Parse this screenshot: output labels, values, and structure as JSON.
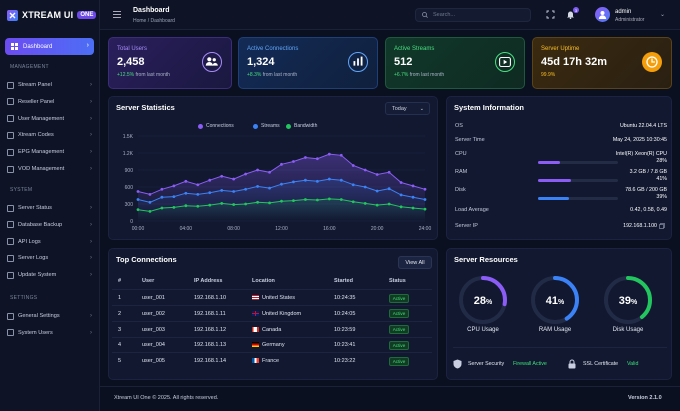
{
  "brand": {
    "name": "XTREAM UI",
    "badge": "ONE"
  },
  "header": {
    "title": "Dashboard",
    "breadcrumb": "Home / Dashboard",
    "search_placeholder": "Search...",
    "notification_count": "3",
    "user_name": "admin",
    "user_role": "Administrator"
  },
  "sidebar": {
    "active_item": "Dashboard",
    "sections": [
      {
        "label": "MANAGEMENT",
        "items": [
          "Stream Panel",
          "Reseller Panel",
          "User Management",
          "Xtream Codes",
          "EPG Management",
          "VOD Management"
        ]
      },
      {
        "label": "SYSTEM",
        "items": [
          "Server Status",
          "Database Backup",
          "API Logs",
          "Server Logs",
          "Update System"
        ]
      },
      {
        "label": "SETTINGS",
        "items": [
          "General Settings",
          "System Users"
        ]
      }
    ]
  },
  "stats": [
    {
      "title": "Total Users",
      "value": "2,458",
      "delta": "+12.5%",
      "note": "from last month",
      "color": "#a78bfa",
      "icon": "users-icon"
    },
    {
      "title": "Active Connections",
      "value": "1,324",
      "delta": "+8.3%",
      "note": "from last month",
      "color": "#60a5fa",
      "icon": "bar-chart-icon"
    },
    {
      "title": "Active Streams",
      "value": "512",
      "delta": "+6.7%",
      "note": "from last month",
      "color": "#4ade80",
      "icon": "play-icon"
    },
    {
      "title": "Server Uptime",
      "value": "45d 17h 32m",
      "delta": "",
      "note": "99.9%",
      "color": "#fbbf24",
      "icon": "clock-icon"
    }
  ],
  "server_stats": {
    "title": "Server Statistics",
    "range": "Today",
    "chart_data": {
      "type": "line",
      "title": "Server Statistics",
      "x": [
        "00:00",
        "01:00",
        "02:00",
        "03:00",
        "04:00",
        "05:00",
        "06:00",
        "07:00",
        "08:00",
        "09:00",
        "10:00",
        "11:00",
        "12:00",
        "13:00",
        "14:00",
        "15:00",
        "16:00",
        "17:00",
        "18:00",
        "19:00",
        "20:00",
        "21:00",
        "22:00",
        "23:00",
        "24:00"
      ],
      "xticks": [
        "00:00",
        "04:00",
        "08:00",
        "12:00",
        "16:00",
        "20:00",
        "24:00"
      ],
      "yticks": [
        "0",
        "300",
        "600",
        "900",
        "1.2K",
        "1.5K"
      ],
      "ylim": [
        0,
        1500
      ],
      "grid": true,
      "legend": "top",
      "series": [
        {
          "name": "Connections",
          "color": "#8b5cf6",
          "values": [
            520,
            470,
            560,
            620,
            700,
            640,
            720,
            790,
            740,
            830,
            900,
            860,
            1000,
            1050,
            1120,
            1100,
            1180,
            1160,
            980,
            900,
            820,
            860,
            680,
            620,
            560
          ]
        },
        {
          "name": "Streams",
          "color": "#3b82f6",
          "values": [
            380,
            330,
            420,
            430,
            490,
            470,
            500,
            540,
            520,
            560,
            610,
            580,
            650,
            690,
            720,
            700,
            740,
            720,
            640,
            600,
            530,
            570,
            460,
            420,
            380
          ]
        },
        {
          "name": "Bandwidth",
          "color": "#22c55e",
          "values": [
            200,
            170,
            230,
            240,
            270,
            260,
            280,
            310,
            290,
            300,
            330,
            320,
            350,
            360,
            380,
            370,
            390,
            380,
            340,
            310,
            280,
            300,
            250,
            230,
            210
          ]
        }
      ]
    }
  },
  "system_info": {
    "title": "System Information",
    "rows": [
      {
        "label": "OS",
        "value": "Ubuntu 22.04.4 LTS"
      },
      {
        "label": "Server Time",
        "value": "May 24, 2025 10:30:45"
      },
      {
        "label": "CPU",
        "value": "Intel(R) Xeon(R) CPU",
        "sub": "28%",
        "bar": 0.28,
        "color": "#8b5cf6"
      },
      {
        "label": "RAM",
        "value": "3.2 GB / 7.8 GB",
        "sub": "41%",
        "bar": 0.41,
        "color": "#8b5cf6"
      },
      {
        "label": "Disk",
        "value": "78.6 GB / 200 GB",
        "sub": "39%",
        "bar": 0.39,
        "color": "#3b82f6"
      },
      {
        "label": "Load Average",
        "value": "0.42, 0.58, 0.49"
      },
      {
        "label": "Server IP",
        "value": "192.168.1.100"
      }
    ]
  },
  "connections": {
    "title": "Top Connections",
    "view_all": "View All",
    "columns": [
      "#",
      "User",
      "IP Address",
      "Location",
      "Started",
      "Status"
    ],
    "rows": [
      {
        "n": "1",
        "user": "user_001",
        "ip": "192.168.1.10",
        "loc": "United States",
        "flag": "us",
        "started": "10:24:35",
        "status": "Active"
      },
      {
        "n": "2",
        "user": "user_002",
        "ip": "192.168.1.11",
        "loc": "United Kingdom",
        "flag": "uk",
        "started": "10:24:05",
        "status": "Active"
      },
      {
        "n": "3",
        "user": "user_003",
        "ip": "192.168.1.12",
        "loc": "Canada",
        "flag": "ca",
        "started": "10:23:59",
        "status": "Active"
      },
      {
        "n": "4",
        "user": "user_004",
        "ip": "192.168.1.13",
        "loc": "Germany",
        "flag": "de",
        "started": "10:23:41",
        "status": "Active"
      },
      {
        "n": "5",
        "user": "user_005",
        "ip": "192.168.1.14",
        "loc": "France",
        "flag": "fr",
        "started": "10:23:22",
        "status": "Active"
      }
    ]
  },
  "resources": {
    "title": "Server Resources",
    "rings": [
      {
        "label": "CPU Usage",
        "value": 28,
        "text": "28",
        "color": "#8b5cf6"
      },
      {
        "label": "RAM Usage",
        "value": 41,
        "text": "41",
        "color": "#3b82f6"
      },
      {
        "label": "Disk Usage",
        "value": 39,
        "text": "39",
        "color": "#22c55e"
      }
    ],
    "security_label": "Server Security",
    "security_value": "Firewall Active",
    "ssl_label": "SSL Certificate",
    "ssl_value": "Valid"
  },
  "footer": {
    "copyright": "Xtream UI One © 2025. All rights reserved.",
    "version": "Version 2.1.0"
  }
}
